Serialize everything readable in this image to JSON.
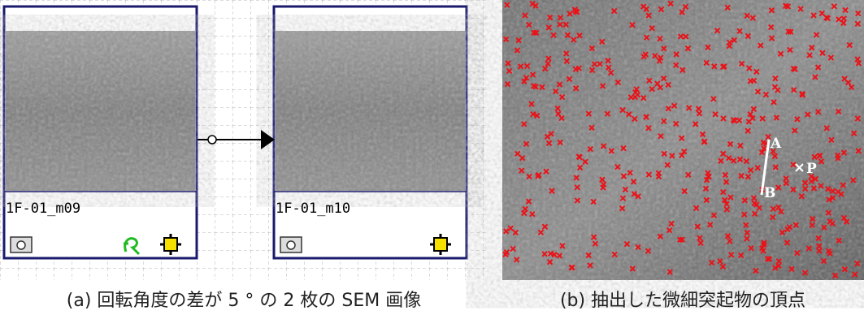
{
  "panels": [
    {
      "frames": [
        {
          "label": "1F-01_m09"
        },
        {
          "label": "1F-01_m10"
        }
      ],
      "caption": "(a) 回転角度の差が 5 ° の 2 枚の SEM 画像"
    },
    {
      "annotations": [
        "A",
        "B",
        "P"
      ],
      "caption": "(b) 抽出した微細突起物の頂点"
    }
  ]
}
